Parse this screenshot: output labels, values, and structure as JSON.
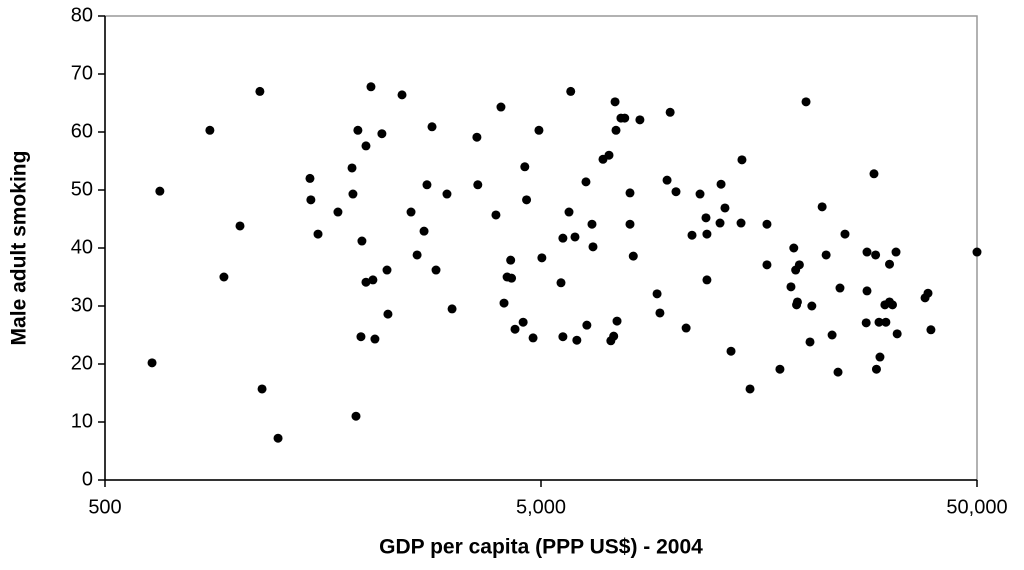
{
  "chart_data": {
    "type": "scatter",
    "x_label": "GDP per capita (PPP US$) - 2004",
    "y_label": "Male adult smoking",
    "color": "#000000",
    "xscale": "log",
    "xlim": [
      500,
      50000
    ],
    "xticks": [
      500,
      {
        "value": 5000,
        "label": "5,000"
      },
      {
        "value": 50000,
        "label": "50,000"
      }
    ],
    "ylim": [
      0,
      80
    ],
    "yticks": [
      0,
      10,
      20,
      30,
      40,
      50,
      60,
      70,
      80
    ],
    "x": [
      641,
      668,
      870,
      937,
      1020,
      1133,
      1146,
      1247,
      1476,
      1483,
      1540,
      1711,
      1843,
      1852,
      1901,
      1882,
      1942,
      1932,
      1984,
      1984,
      2037,
      2058,
      2080,
      2158,
      2217,
      2228,
      2400,
      2517,
      2599,
      2696,
      2738,
      2812,
      2872,
      3043,
      3126,
      3564,
      3581,
      3941,
      4047,
      4113,
      4180,
      4260,
      4280,
      4359,
      4550,
      4590,
      4633,
      4795,
      4946,
      5023,
      5557,
      5613,
      5613,
      5797,
      5850,
      5983,
      6042,
      6340,
      6370,
      6545,
      6580,
      6937,
      7160,
      7230,
      7340,
      7393,
      7430,
      7470,
      7627,
      7780,
      8000,
      8000,
      8140,
      8430,
      9230,
      9370,
      9730,
      9890,
      10200,
      10760,
      11100,
      11580,
      11950,
      12010,
      12010,
      12870,
      12940,
      13210,
      13640,
      14380,
      14450,
      15080,
      16490,
      16490,
      17660,
      18720,
      19000,
      19190,
      19280,
      19370,
      19570,
      20270,
      20700,
      20900,
      22070,
      22540,
      23260,
      24000,
      24250,
      24900,
      27970,
      27850,
      27970,
      29020,
      29270,
      29400,
      29800,
      29950,
      30900,
      30740,
      31500,
      31500,
      32000,
      32600,
      32800,
      38000,
      38600,
      39200,
      50000
    ],
    "y": [
      20.2,
      49.8,
      60.3,
      35,
      43.8,
      67,
      15.7,
      7.2,
      52,
      48.3,
      42.4,
      46.2,
      53.8,
      49.3,
      60.3,
      11,
      41.2,
      24.7,
      57.6,
      34.1,
      67.8,
      34.5,
      24.3,
      59.7,
      36.2,
      28.6,
      66.4,
      46.2,
      38.8,
      42.9,
      50.9,
      60.9,
      36.2,
      49.3,
      29.5,
      59.1,
      50.9,
      45.7,
      64.3,
      30.5,
      35,
      37.9,
      34.8,
      26,
      27.2,
      54,
      48.3,
      24.5,
      60.3,
      38.3,
      34,
      24.7,
      41.7,
      46.2,
      67,
      41.9,
      24.1,
      51.4,
      26.7,
      44.1,
      40.2,
      55.3,
      56,
      24,
      24.8,
      65.2,
      60.3,
      27.4,
      62.4,
      62.4,
      49.5,
      44.1,
      38.6,
      62.1,
      32.1,
      28.8,
      51.7,
      63.4,
      49.7,
      26.2,
      42.2,
      49.3,
      45.2,
      34.5,
      42.4,
      44.3,
      51,
      46.9,
      22.2,
      44.3,
      55.2,
      15.7,
      44.1,
      37.1,
      19.1,
      33.3,
      40,
      36.2,
      30.2,
      30.7,
      37.1,
      65.2,
      23.8,
      30,
      47.1,
      38.8,
      25,
      18.6,
      33.1,
      42.4,
      39.3,
      27.1,
      32.6,
      52.8,
      38.8,
      19.1,
      27.2,
      21.2,
      27.2,
      30.2,
      37.2,
      30.7,
      30.2,
      39.3,
      25.2,
      31.4,
      32.2,
      25.9,
      39.3
    ]
  }
}
